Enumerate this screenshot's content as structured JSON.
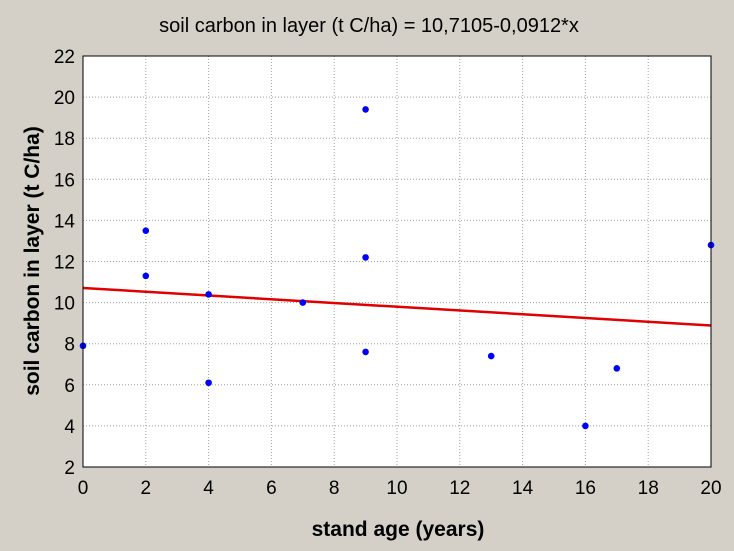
{
  "chart_data": {
    "type": "scatter",
    "title": "soil carbon in layer (t C/ha) = 10,7105-0,0912*x",
    "xlabel": "stand age (years)",
    "ylabel": "soil carbon in layer (t C/ha)",
    "xlim": [
      0,
      20
    ],
    "ylim": [
      2,
      22
    ],
    "xticks": [
      "0",
      "2",
      "4",
      "6",
      "8",
      "10",
      "12",
      "14",
      "16",
      "18",
      "20"
    ],
    "yticks": [
      "2",
      "4",
      "6",
      "8",
      "10",
      "12",
      "14",
      "16",
      "18",
      "20",
      "22"
    ],
    "grid": true,
    "points": [
      {
        "x": 0,
        "y": 7.9
      },
      {
        "x": 2,
        "y": 13.5
      },
      {
        "x": 2,
        "y": 11.3
      },
      {
        "x": 4,
        "y": 10.4
      },
      {
        "x": 4,
        "y": 6.1
      },
      {
        "x": 7,
        "y": 10.0
      },
      {
        "x": 9,
        "y": 19.4
      },
      {
        "x": 9,
        "y": 12.2
      },
      {
        "x": 9,
        "y": 7.6
      },
      {
        "x": 13,
        "y": 7.4
      },
      {
        "x": 16,
        "y": 4.0
      },
      {
        "x": 17,
        "y": 6.8
      },
      {
        "x": 20,
        "y": 12.8
      }
    ],
    "regression": {
      "intercept": 10.7105,
      "slope": -0.0912
    },
    "colors": {
      "points": "#0000ff",
      "line": "#e00000",
      "background": "#d4d0c8",
      "plot_area": "#ffffff",
      "grid": "#a0a0a0"
    }
  }
}
